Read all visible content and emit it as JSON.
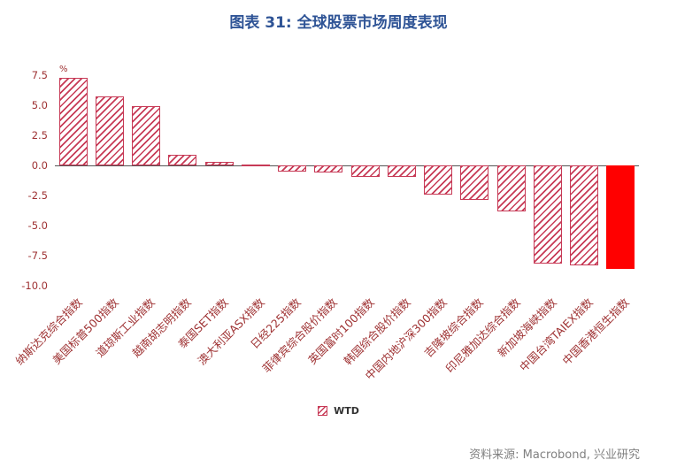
{
  "title": "图表 31: 全球股票市场周度表现",
  "source": "资料来源: Macrobond, 兴业研究",
  "colors": {
    "title": "#2F5496",
    "axis_text": "#9E3132",
    "bar_hatch": "#C73A56",
    "bar_solid": "#FF0000",
    "zero_line": "#555555",
    "source_text": "#808080",
    "legend_text": "#333333"
  },
  "chart_data": {
    "type": "bar",
    "title": "图表 31: 全球股票市场周度表现",
    "unit": "%",
    "categories": [
      "纳斯达克综合指数",
      "美国标普500指数",
      "道琼斯工业指数",
      "越南胡志明指数",
      "泰国SET指数",
      "澳大利亚ASX指数",
      "日经225指数",
      "菲律宾综合股价指数",
      "英国富时100指数",
      "韩国综合股价指数",
      "中国内地沪深300指数",
      "吉隆坡综合指数",
      "印尼雅加达综合指数",
      "新加坡海峡指数",
      "中国台湾TAIEX指数",
      "中国香港恒生指数"
    ],
    "values": [
      7.3,
      5.7,
      4.9,
      0.9,
      0.3,
      0.05,
      -0.5,
      -0.6,
      -1.0,
      -1.0,
      -2.4,
      -2.9,
      -3.8,
      -8.2,
      -8.3,
      -8.6
    ],
    "styles": [
      "hatched",
      "hatched",
      "hatched",
      "hatched",
      "hatched",
      "hatched",
      "hatched",
      "hatched",
      "hatched",
      "hatched",
      "hatched",
      "hatched",
      "hatched",
      "hatched",
      "hatched",
      "solid"
    ],
    "legend": [
      "WTD"
    ],
    "legend_position": "bottom-center",
    "xlabel": "",
    "ylabel": "%",
    "ylim": [
      -10,
      8
    ],
    "yticks": [
      7.5,
      5.0,
      2.5,
      0.0,
      -2.5,
      -5.0,
      -7.5,
      -10.0
    ],
    "grid": false,
    "hatch": "diagonal"
  }
}
